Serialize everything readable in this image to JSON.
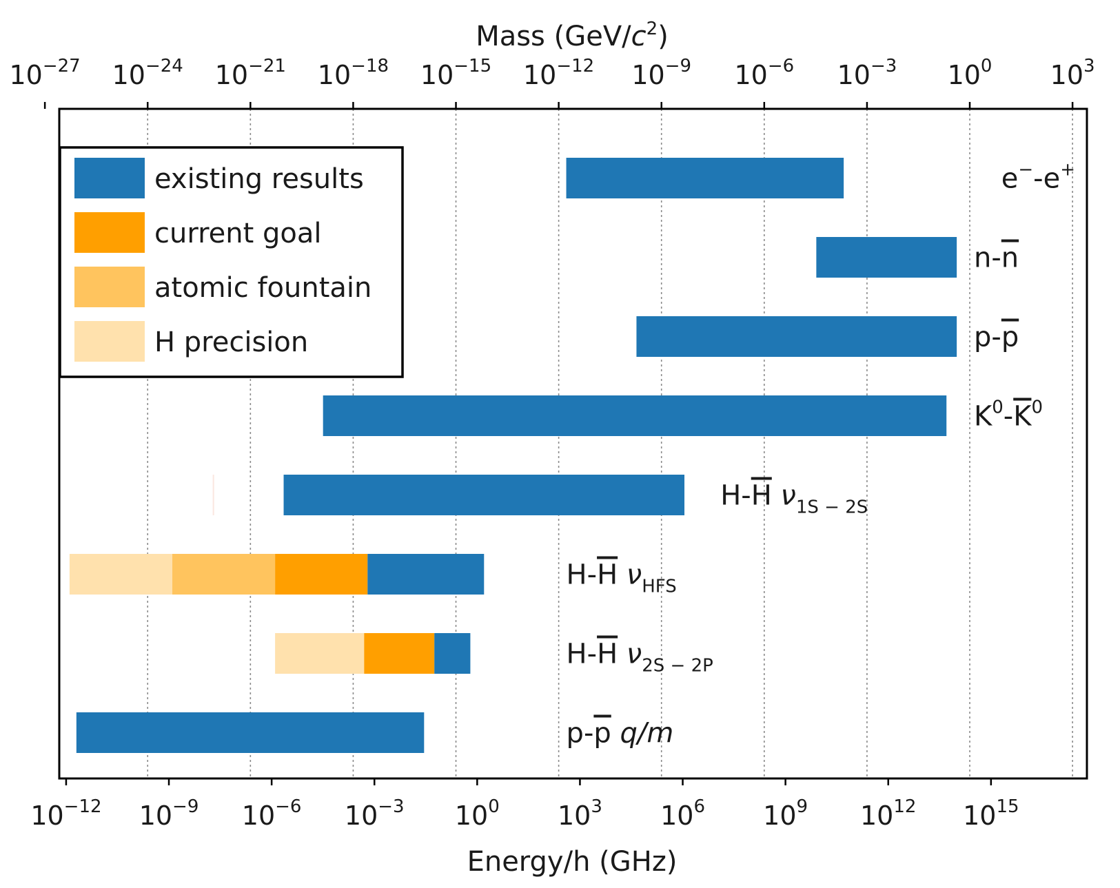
{
  "colors": {
    "existing": "#1f77b4",
    "goal": "#ff9f00",
    "fountain": "#ffc45e",
    "precision": "#ffe1ad",
    "axis": "#000000",
    "grid": "#8a8a8a"
  },
  "chart_data": {
    "type": "bar",
    "orientation": "horizontal",
    "scale": "log",
    "xlabel": "Energy/h (GHz)",
    "x2label_prefix": "Mass (GeV/",
    "x2label_var": "c",
    "x2label_sup": "2",
    "x2label_suffix": ")",
    "xlim_log10": [
      -12.2,
      17.8
    ],
    "x_ticks": [
      {
        "base": "10",
        "exp": "−12",
        "log": -12
      },
      {
        "base": "10",
        "exp": "−9",
        "log": -9
      },
      {
        "base": "10",
        "exp": "−6",
        "log": -6
      },
      {
        "base": "10",
        "exp": "−3",
        "log": -3
      },
      {
        "base": "10",
        "exp": "0",
        "log": 0
      },
      {
        "base": "10",
        "exp": "3",
        "log": 3
      },
      {
        "base": "10",
        "exp": "6",
        "log": 6
      },
      {
        "base": "10",
        "exp": "9",
        "log": 9
      },
      {
        "base": "10",
        "exp": "12",
        "log": 12
      },
      {
        "base": "10",
        "exp": "15",
        "log": 15
      }
    ],
    "mass_ticks": [
      {
        "base": "10",
        "exp": "−27",
        "log_energy": -12.62
      },
      {
        "base": "10",
        "exp": "−24",
        "log_energy": -9.62
      },
      {
        "base": "10",
        "exp": "−21",
        "log_energy": -6.62
      },
      {
        "base": "10",
        "exp": "−18",
        "log_energy": -3.62
      },
      {
        "base": "10",
        "exp": "−15",
        "log_energy": -0.62
      },
      {
        "base": "10",
        "exp": "−12",
        "log_energy": 2.38
      },
      {
        "base": "10",
        "exp": "−9",
        "log_energy": 5.38
      },
      {
        "base": "10",
        "exp": "−6",
        "log_energy": 8.38
      },
      {
        "base": "10",
        "exp": "−3",
        "log_energy": 11.38
      },
      {
        "base": "10",
        "exp": "0",
        "log_energy": 14.38
      },
      {
        "base": "10",
        "exp": "3",
        "log_energy": 17.38
      }
    ],
    "legend": [
      {
        "key": "existing",
        "label": "existing results"
      },
      {
        "key": "goal",
        "label": "current goal"
      },
      {
        "key": "fountain",
        "label": "atomic fountain"
      },
      {
        "key": "precision",
        "label": "H precision"
      }
    ],
    "rows": [
      {
        "label_main": "e",
        "label_sup1": "−",
        "label_mid": "-e",
        "label_sup2": "+",
        "label_log": 15.3,
        "segments": [
          {
            "key": "existing",
            "from_log": 2.6,
            "to_log": 10.7
          }
        ]
      },
      {
        "label_main": "n-",
        "label_bar": "n",
        "label_log": 14.5,
        "segments": [
          {
            "key": "existing",
            "from_log": 9.9,
            "to_log": 14.0
          }
        ]
      },
      {
        "label_main": "p-",
        "label_bar": "p",
        "label_log": 14.5,
        "segments": [
          {
            "key": "existing",
            "from_log": 4.65,
            "to_log": 14.0
          }
        ]
      },
      {
        "label_main": "K",
        "label_sup1": "0",
        "label_mid": "-",
        "label_bar": "K",
        "label_sup2": "0",
        "label_log": 14.5,
        "segments": [
          {
            "key": "existing",
            "from_log": -4.5,
            "to_log": 13.7
          }
        ]
      },
      {
        "label_main": "H-",
        "label_bar": "H",
        "label_var": "ν",
        "label_sub": "1S − 2S",
        "label_log": 7.1,
        "segments": [
          {
            "key": "existing",
            "from_log": -5.65,
            "to_log": 6.05
          }
        ]
      },
      {
        "label_main": "H-",
        "label_bar": "H",
        "label_var": "ν",
        "label_sub": "HFS",
        "label_log": 2.6,
        "segments": [
          {
            "key": "precision",
            "from_log": -11.9,
            "to_log": -8.9
          },
          {
            "key": "fountain",
            "from_log": -8.9,
            "to_log": -5.9
          },
          {
            "key": "goal",
            "from_log": -5.9,
            "to_log": -3.2
          },
          {
            "key": "existing",
            "from_log": -3.2,
            "to_log": 0.2
          }
        ]
      },
      {
        "label_main": "H-",
        "label_bar": "H",
        "label_var": "ν",
        "label_sub": "2S − 2P",
        "label_log": 2.6,
        "segments": [
          {
            "key": "precision",
            "from_log": -5.9,
            "to_log": -3.3
          },
          {
            "key": "goal",
            "from_log": -3.3,
            "to_log": -1.25
          },
          {
            "key": "existing",
            "from_log": -1.25,
            "to_log": -0.2
          }
        ]
      },
      {
        "label_main": "p-",
        "label_bar": "p",
        "label_italic": "q/m",
        "label_log": 2.6,
        "segments": [
          {
            "key": "existing",
            "from_log": -11.7,
            "to_log": -1.55
          }
        ]
      }
    ],
    "marker_log": -7.7
  }
}
